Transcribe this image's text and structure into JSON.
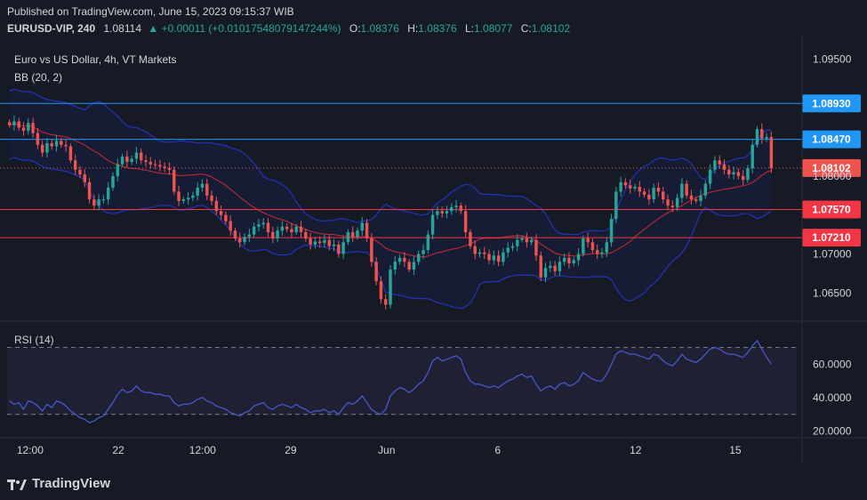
{
  "header": {
    "published": "Published on TradingView.com, June 15, 2023 09:15:37 WIB",
    "symbol": "EURUSD-VIP, 240",
    "last": "1.08114",
    "change": "▲ +0.00011 (+0.01017548079147244%)",
    "o_label": "O:",
    "o": "1.08376",
    "h_label": "H:",
    "h": "1.08376",
    "l_label": "L:",
    "l": "1.08077",
    "c_label": "C:",
    "c": "1.08102"
  },
  "legend": {
    "title": "Euro vs US Dollar, 4h, VT Markets",
    "bb": "BB (20, 2)",
    "rsi": "RSI (14)"
  },
  "footer": {
    "brand": "TradingView"
  },
  "colors": {
    "background": "#161a25",
    "up": "#26a69a",
    "down": "#ef5350",
    "bb_band": "#2233bb",
    "bb_basis": "#b22833",
    "level_blue": "#2196f3",
    "level_red": "#f23645",
    "rsi_line": "#4657c9"
  },
  "chart_data": {
    "type": "candlestick",
    "x_ticks": [
      "12:00",
      "22",
      "12:00",
      "29",
      "Jun",
      "6",
      "12",
      "15"
    ],
    "price_axis_ticks": [
      "1.09500",
      "1.06500",
      "1.07000",
      "1.08000"
    ],
    "ylim": [
      1.0615,
      1.098
    ],
    "levels": [
      {
        "label": "1.08930",
        "value": 1.0893,
        "color": "blue"
      },
      {
        "label": "1.08470",
        "value": 1.0847,
        "color": "blue"
      },
      {
        "label": "1.08102",
        "value": 1.08102,
        "color": "current"
      },
      {
        "label": "1.07570",
        "value": 1.0757,
        "color": "red"
      },
      {
        "label": "1.07210",
        "value": 1.0721,
        "color": "red"
      }
    ],
    "close": [
      1.0865,
      1.087,
      1.0862,
      1.0858,
      1.0868,
      1.0855,
      1.084,
      1.083,
      1.0842,
      1.0838,
      1.0845,
      1.084,
      1.0838,
      1.082,
      1.0808,
      1.0802,
      1.0792,
      1.077,
      1.0762,
      1.077,
      1.077,
      1.0785,
      1.08,
      1.0815,
      1.0825,
      1.0818,
      1.0822,
      1.083,
      1.082,
      1.0818,
      1.0815,
      1.0814,
      1.0812,
      1.081,
      1.0808,
      1.078,
      1.0768,
      1.077,
      1.0772,
      1.0775,
      1.0785,
      1.079,
      1.0775,
      1.0768,
      1.0755,
      1.075,
      1.0742,
      1.073,
      1.072,
      1.0715,
      1.0722,
      1.0725,
      1.0735,
      1.0738,
      1.074,
      1.0728,
      1.072,
      1.073,
      1.0735,
      1.0732,
      1.0728,
      1.0735,
      1.0728,
      1.072,
      1.0712,
      1.0716,
      1.0714,
      1.0718,
      1.071,
      1.0712,
      1.07,
      1.0715,
      1.0728,
      1.0722,
      1.073,
      1.074,
      1.072,
      1.069,
      1.0665,
      1.0642,
      1.0635,
      1.068,
      1.069,
      1.0695,
      1.069,
      1.068,
      1.069,
      1.07,
      1.0705,
      1.0725,
      1.075,
      1.0755,
      1.0752,
      1.0755,
      1.076,
      1.0762,
      1.0755,
      1.0728,
      1.071,
      1.07,
      1.0702,
      1.07,
      1.0692,
      1.0698,
      1.069,
      1.0702,
      1.0708,
      1.071,
      1.0718,
      1.072,
      1.0715,
      1.0718,
      1.0698,
      1.067,
      1.0682,
      1.0685,
      1.0678,
      1.069,
      1.0695,
      1.0688,
      1.0692,
      1.07,
      1.072,
      1.0715,
      1.0705,
      1.07,
      1.0702,
      1.0715,
      1.0745,
      1.078,
      1.0792,
      1.0788,
      1.0784,
      1.0786,
      1.078,
      1.0776,
      1.077,
      1.0785,
      1.078,
      1.077,
      1.0762,
      1.076,
      1.0772,
      1.079,
      1.0775,
      1.077,
      1.0768,
      1.0775,
      1.079,
      1.0808,
      1.082,
      1.0815,
      1.0808,
      1.0802,
      1.0805,
      1.08,
      1.0795,
      1.081,
      1.084,
      1.086,
      1.0848,
      1.085,
      1.081
    ],
    "x_label": "",
    "y_label": ""
  },
  "rsi_data": {
    "type": "line",
    "ticks": [
      "60.0000",
      "40.0000",
      "20.0000"
    ],
    "ylim": [
      16,
      82
    ],
    "bands": [
      70,
      30
    ],
    "values": [
      38,
      36,
      37,
      33,
      38,
      37,
      35,
      32,
      36,
      34,
      38,
      37,
      35,
      32,
      30,
      28,
      27,
      25,
      26,
      28,
      29,
      33,
      37,
      42,
      45,
      43,
      44,
      47,
      44,
      43,
      43,
      42,
      42,
      41,
      41,
      37,
      35,
      36,
      36,
      37,
      39,
      40,
      38,
      37,
      35,
      34,
      33,
      31,
      30,
      29,
      31,
      32,
      35,
      36,
      37,
      34,
      33,
      35,
      36,
      35,
      34,
      36,
      34,
      33,
      31,
      32,
      32,
      33,
      31,
      32,
      30,
      34,
      37,
      36,
      38,
      41,
      37,
      33,
      31,
      30,
      33,
      41,
      44,
      46,
      45,
      43,
      45,
      48,
      50,
      55,
      62,
      64,
      62,
      63,
      64,
      65,
      63,
      55,
      50,
      48,
      48,
      47,
      46,
      47,
      46,
      48,
      50,
      51,
      53,
      54,
      52,
      53,
      48,
      44,
      46,
      47,
      45,
      48,
      49,
      47,
      48,
      50,
      55,
      53,
      51,
      50,
      50,
      54,
      60,
      66,
      68,
      67,
      66,
      66,
      65,
      64,
      63,
      66,
      65,
      62,
      60,
      59,
      62,
      66,
      63,
      62,
      61,
      63,
      66,
      69,
      70,
      69,
      67,
      66,
      66,
      65,
      64,
      67,
      71,
      74,
      69,
      64,
      60
    ],
    "x_label": "",
    "y_label": ""
  }
}
